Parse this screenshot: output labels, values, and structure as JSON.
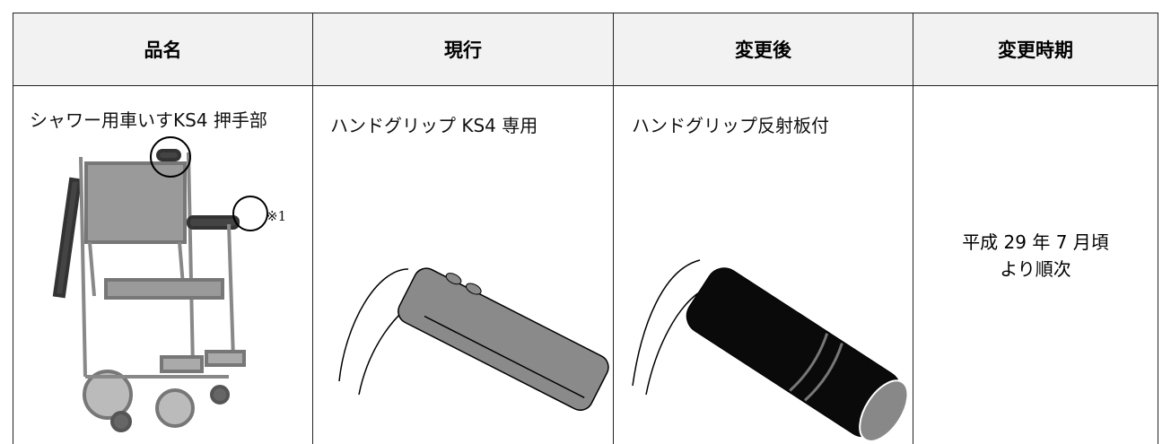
{
  "table": {
    "header": [
      "品名",
      "現行",
      "変更後",
      "変更時期"
    ],
    "rows": [
      [
        "シャワー用車いすKS4 押手部",
        "ハンドグリップ KS4 専用",
        "ハンドグリップ反射板付",
        [
          "平成 29 年 7 月頃",
          "より順次"
        ]
      ]
    ]
  },
  "annotation": "※1"
}
